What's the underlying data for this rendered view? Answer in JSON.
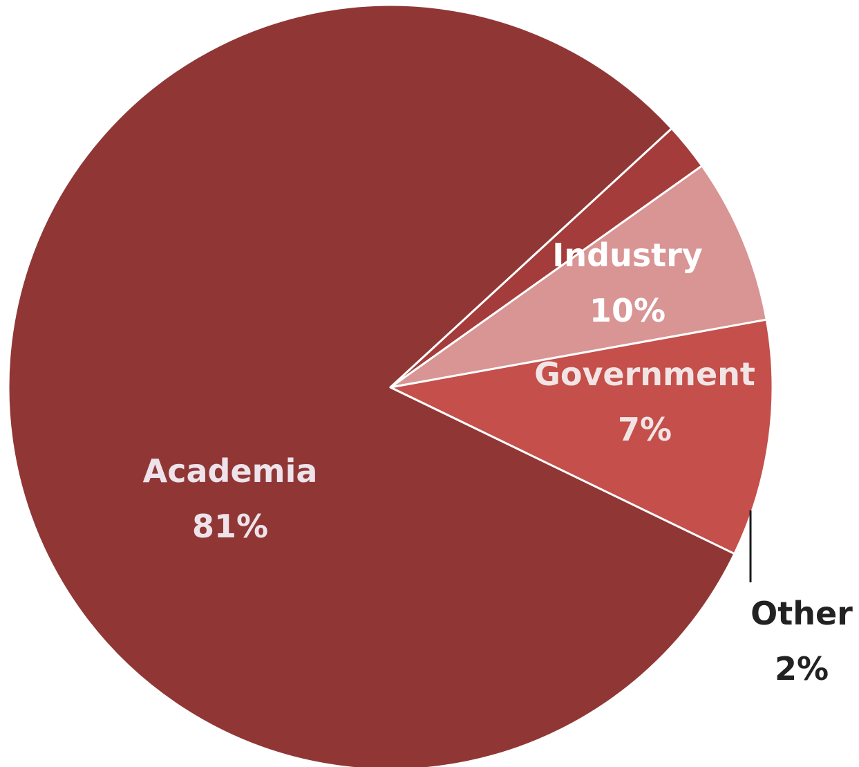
{
  "chart_data": {
    "type": "pie",
    "title": "",
    "slices": [
      {
        "name": "Academia",
        "value": 81,
        "value_label": "81%",
        "color": "#903736",
        "label_color": "#eee3ea"
      },
      {
        "name": "Industry",
        "value": 10,
        "value_label": "10%",
        "color": "#c44f4b",
        "label_color": "#ffffff"
      },
      {
        "name": "Government",
        "value": 7,
        "value_label": "7%",
        "color": "#d99494",
        "label_color": "#f2e4e4"
      },
      {
        "name": "Other",
        "value": 2,
        "value_label": "2%",
        "color": "#a33c3a",
        "label_color": "#222222"
      }
    ],
    "legend": "none",
    "labels": "on-slice; Other labelled outside with a leader line"
  }
}
